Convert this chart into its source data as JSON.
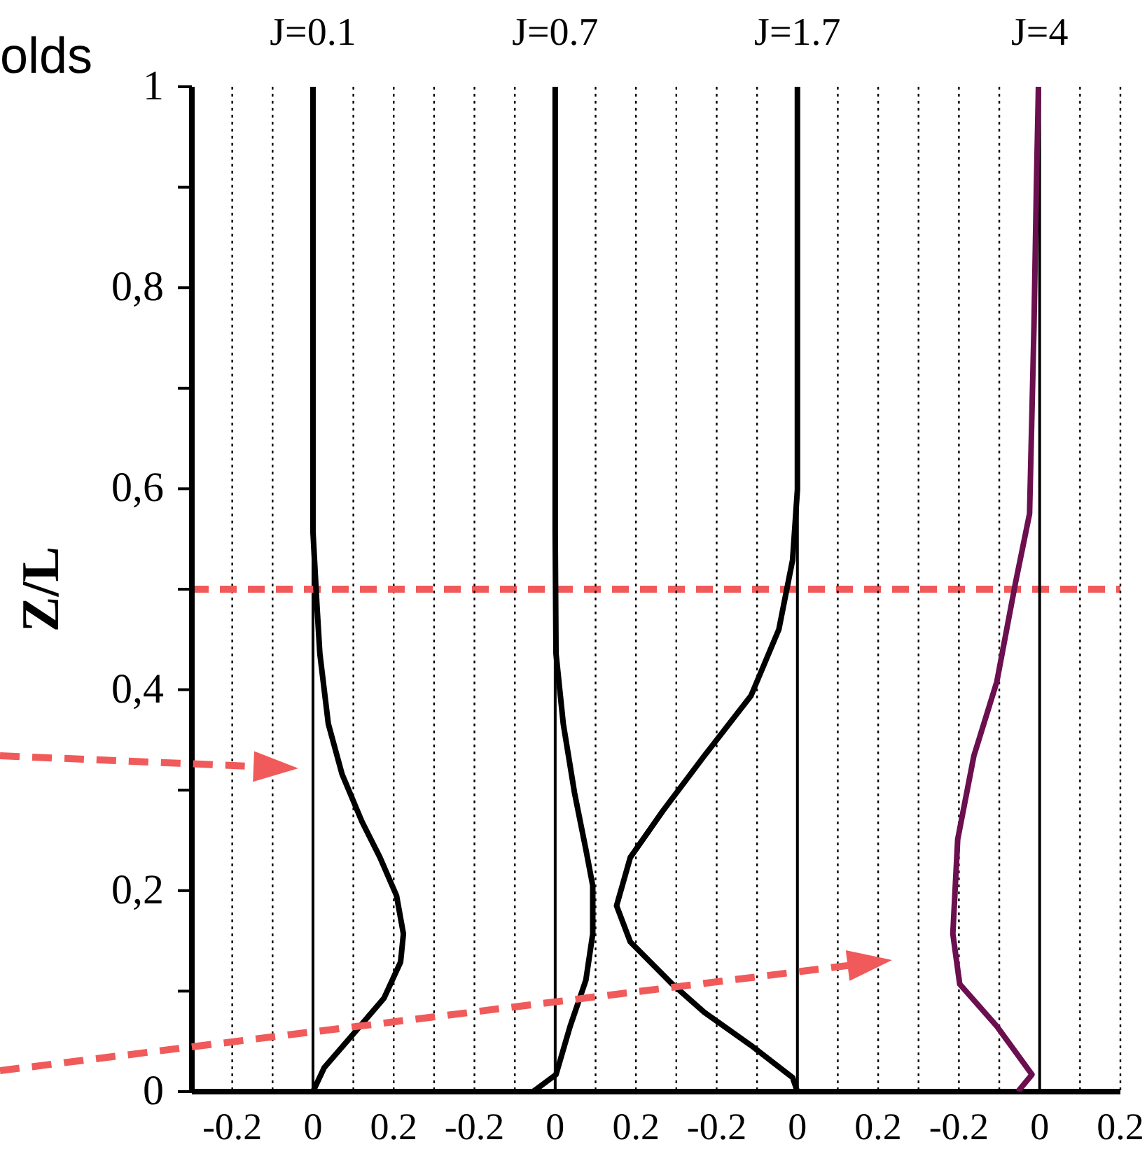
{
  "chart_data": [
    {
      "type": "line",
      "title": "J=0.1",
      "ylabel": "Z/L",
      "annotations": [
        "olds"
      ],
      "xlim": [
        -0.3,
        2.0
      ],
      "xticks": [
        -0.2,
        {
          "value": -0.1,
          "label": null
        },
        0,
        {
          "value": 0.1,
          "label": null
        },
        0.2,
        {
          "value": 0.3,
          "label": null
        }
      ],
      "ylim": [
        0,
        1
      ],
      "yticks": [
        0,
        {
          "value": 0.1,
          "label": null
        },
        {
          "value": 0.2,
          "label": "0,2"
        },
        {
          "value": 0.3,
          "label": null
        },
        {
          "value": 0.4,
          "label": "0,4"
        },
        {
          "value": 0.5,
          "label": null
        },
        {
          "value": 0.6,
          "label": "0,6"
        },
        {
          "value": 0.7,
          "label": null
        },
        {
          "value": 0.8,
          "label": "0,8"
        },
        {
          "value": 0.9,
          "label": null
        },
        1
      ],
      "grid": "x",
      "marker": "none",
      "line_style": "solid",
      "ref_lines": [
        {
          "axis": "x",
          "value": 0,
          "color": "#000000",
          "line_style": "solid"
        },
        {
          "axis": "y",
          "value": 0.5,
          "color": "#f05a5a",
          "line_style": "dashed"
        }
      ],
      "series": [
        {
          "color": "#000000",
          "x": [
            0,
            0.028,
            0.097,
            0.176,
            0.217,
            0.224,
            0.207,
            0.166,
            0.121,
            0.072,
            0.038,
            0.017,
            0.01,
            0,
            0
          ],
          "values": [
            0,
            0.024,
            0.056,
            0.093,
            0.129,
            0.157,
            0.195,
            0.233,
            0.269,
            0.316,
            0.366,
            0.436,
            0.483,
            0.557,
            1
          ]
        }
      ]
    },
    {
      "type": "line",
      "title": "J=0.7",
      "tick_labels": "x",
      "xlim": [
        -0.9,
        1.4
      ],
      "xticks": [
        -0.2,
        {
          "value": -0.1,
          "label": null
        },
        0,
        {
          "value": 0.1,
          "label": null
        },
        0.2,
        {
          "value": 0.3,
          "label": null
        }
      ],
      "ylim": [
        0,
        1
      ],
      "grid": "x",
      "marker": "none",
      "line_style": "solid",
      "ref_lines": [
        {
          "axis": "x",
          "value": 0,
          "color": "#000000",
          "line_style": "solid"
        }
      ],
      "series": [
        {
          "color": "#000000",
          "x": [
            -0.055,
            0.002,
            0.037,
            0.076,
            0.093,
            0.093,
            0.076,
            0.048,
            0.02,
            0.002,
            0,
            0
          ],
          "values": [
            0,
            0.017,
            0.065,
            0.111,
            0.157,
            0.205,
            0.241,
            0.297,
            0.366,
            0.436,
            0.557,
            1
          ]
        }
      ]
    },
    {
      "type": "line",
      "title": "J=1.7",
      "tick_labels": "x",
      "xlim": [
        -1.5,
        0.8
      ],
      "xticks": [
        -0.2,
        {
          "value": -0.1,
          "label": null
        },
        0,
        {
          "value": 0.1,
          "label": null
        },
        0.2,
        {
          "value": 0.3,
          "label": null
        }
      ],
      "ylim": [
        0,
        1
      ],
      "grid": "x",
      "marker": "none",
      "line_style": "solid",
      "ref_lines": [
        {
          "axis": "x",
          "value": 0,
          "color": "#000000",
          "line_style": "solid"
        }
      ],
      "series": [
        {
          "color": "#000000",
          "x": [
            0,
            -0.012,
            -0.115,
            -0.231,
            -0.31,
            -0.414,
            -0.448,
            -0.414,
            -0.334,
            -0.231,
            -0.115,
            -0.046,
            -0.012,
            0,
            0
          ],
          "values": [
            0,
            0.014,
            0.046,
            0.079,
            0.107,
            0.149,
            0.185,
            0.233,
            0.279,
            0.334,
            0.394,
            0.46,
            0.529,
            0.599,
            1
          ]
        }
      ]
    },
    {
      "type": "line",
      "title": "J=4",
      "tick_labels": "x",
      "xlim": [
        -2.1,
        0.2
      ],
      "xticks": [
        -0.2,
        {
          "value": -0.1,
          "label": null
        },
        0,
        {
          "value": 0.1,
          "label": null
        },
        0.2
      ],
      "ylim": [
        0,
        1
      ],
      "grid": "x",
      "marker": "none",
      "line_style": "solid",
      "ref_lines": [
        {
          "axis": "x",
          "value": 0,
          "color": "#000000",
          "line_style": "solid"
        }
      ],
      "series": [
        {
          "color": "#6b0f4f",
          "x": [
            -0.054,
            -0.019,
            -0.106,
            -0.198,
            -0.215,
            -0.203,
            -0.163,
            -0.106,
            -0.06,
            -0.025,
            -0.014,
            -0.008,
            -0.003
          ],
          "values": [
            0,
            0.017,
            0.065,
            0.107,
            0.157,
            0.251,
            0.334,
            0.408,
            0.506,
            0.575,
            0.762,
            0.901,
            1
          ]
        }
      ]
    }
  ]
}
